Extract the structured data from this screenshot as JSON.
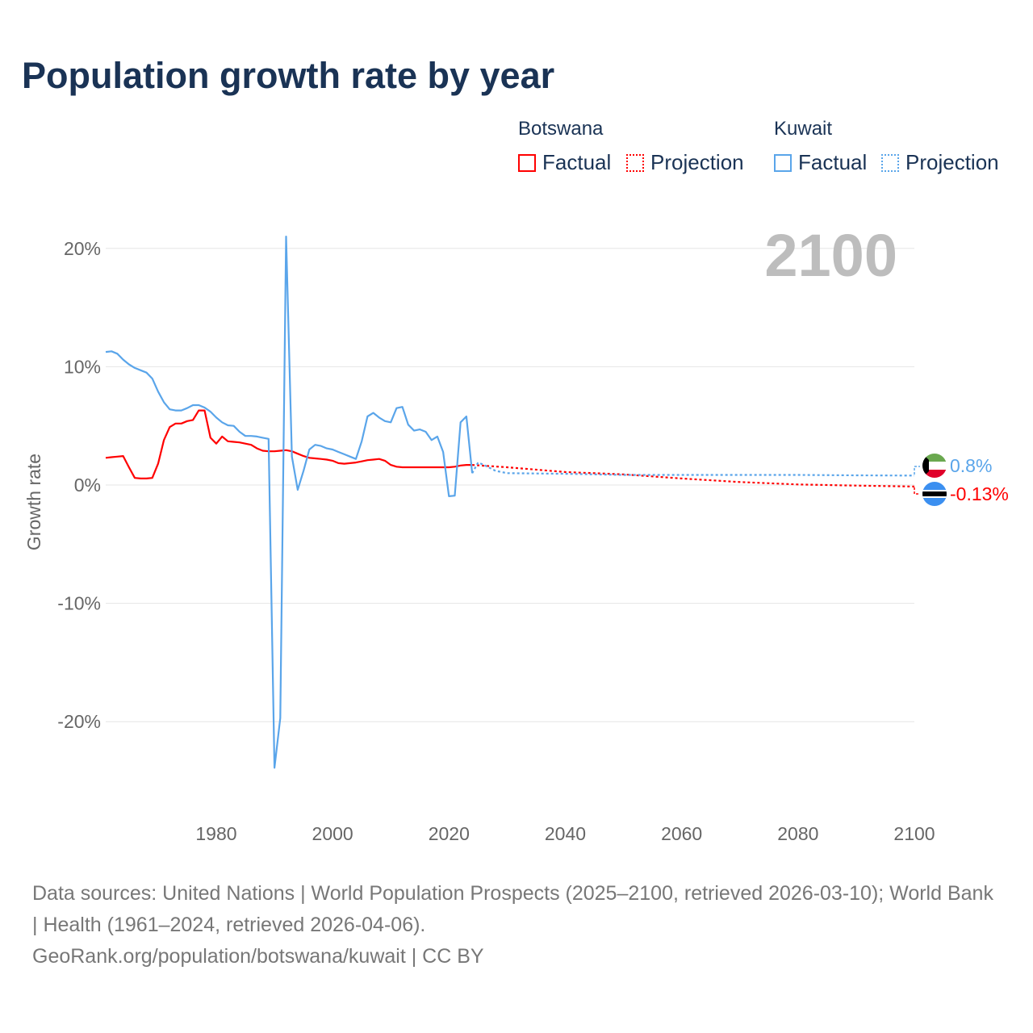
{
  "title": "Population growth rate by year",
  "legend": {
    "groups": [
      {
        "country": "Botswana",
        "factual": "Factual",
        "projection": "Projection",
        "color": "#ff0000"
      },
      {
        "country": "Kuwait",
        "factual": "Factual",
        "projection": "Projection",
        "color": "#5aa5ea"
      }
    ]
  },
  "year_display": "2100",
  "footer": {
    "sources": "Data sources: United Nations | World Population Prospects (2025–2100, retrieved 2026-03-10); World Bank | Health (1961–2024, retrieved 2026-04-06).",
    "site": "GeoRank.org/population/botswana/kuwait | CC BY"
  },
  "chart_data": {
    "type": "line",
    "title": "Population growth rate by year",
    "xlabel": "",
    "ylabel": "Growth rate",
    "xlim": [
      1961,
      2100
    ],
    "ylim": [
      -27,
      24
    ],
    "x_ticks": [
      1980,
      2000,
      2020,
      2040,
      2060,
      2080,
      2100
    ],
    "y_ticks": [
      20,
      10,
      0,
      -10,
      -20
    ],
    "y_tick_labels": [
      "20%",
      "10%",
      "0%",
      "-10%",
      "-20%"
    ],
    "grid": true,
    "end_labels": {
      "Kuwait": "0.8%",
      "Botswana": "-0.13%"
    },
    "series": [
      {
        "name": "Botswana",
        "kind": "factual",
        "color": "#ff0000",
        "x": [
          1961,
          1962,
          1963,
          1964,
          1965,
          1966,
          1967,
          1968,
          1969,
          1970,
          1971,
          1972,
          1973,
          1974,
          1975,
          1976,
          1977,
          1978,
          1979,
          1980,
          1981,
          1982,
          1983,
          1984,
          1985,
          1986,
          1987,
          1988,
          1989,
          1990,
          1991,
          1992,
          1993,
          1994,
          1995,
          1996,
          1997,
          1998,
          1999,
          2000,
          2001,
          2002,
          2003,
          2004,
          2005,
          2006,
          2007,
          2008,
          2009,
          2010,
          2011,
          2012,
          2013,
          2014,
          2015,
          2016,
          2017,
          2018,
          2019,
          2020,
          2021,
          2022,
          2023,
          2024
        ],
        "y": [
          2.3,
          2.35,
          2.4,
          2.45,
          1.5,
          0.6,
          0.55,
          0.55,
          0.6,
          1.8,
          3.8,
          4.9,
          5.2,
          5.2,
          5.4,
          5.5,
          6.3,
          6.3,
          4.0,
          3.5,
          4.1,
          3.7,
          3.65,
          3.6,
          3.5,
          3.4,
          3.1,
          2.9,
          2.85,
          2.85,
          2.9,
          2.95,
          2.85,
          2.65,
          2.45,
          2.3,
          2.25,
          2.2,
          2.15,
          2.05,
          1.85,
          1.8,
          1.85,
          1.9,
          2.0,
          2.1,
          2.15,
          2.2,
          2.05,
          1.7,
          1.55,
          1.5,
          1.5,
          1.5,
          1.5,
          1.5,
          1.5,
          1.5,
          1.5,
          1.5,
          1.55,
          1.65,
          1.7,
          1.7
        ]
      },
      {
        "name": "Botswana",
        "kind": "projection",
        "color": "#ff0000",
        "x": [
          2024,
          2030,
          2040,
          2050,
          2060,
          2070,
          2080,
          2090,
          2100
        ],
        "y": [
          1.7,
          1.5,
          1.1,
          0.9,
          0.55,
          0.25,
          0.05,
          -0.05,
          -0.13
        ]
      },
      {
        "name": "Kuwait",
        "kind": "factual",
        "color": "#5aa5ea",
        "x": [
          1961,
          1962,
          1963,
          1964,
          1965,
          1966,
          1967,
          1968,
          1969,
          1970,
          1971,
          1972,
          1973,
          1974,
          1975,
          1976,
          1977,
          1978,
          1979,
          1980,
          1981,
          1982,
          1983,
          1984,
          1985,
          1986,
          1987,
          1988,
          1989,
          1990,
          1991,
          1992,
          1993,
          1994,
          1995,
          1996,
          1997,
          1998,
          1999,
          2000,
          2001,
          2002,
          2003,
          2004,
          2005,
          2006,
          2007,
          2008,
          2009,
          2010,
          2011,
          2012,
          2013,
          2014,
          2015,
          2016,
          2017,
          2018,
          2019,
          2020,
          2021,
          2022,
          2023,
          2024
        ],
        "y": [
          11.25,
          11.3,
          11.1,
          10.6,
          10.2,
          9.9,
          9.7,
          9.5,
          9.0,
          7.9,
          7.0,
          6.4,
          6.3,
          6.3,
          6.5,
          6.75,
          6.75,
          6.55,
          6.2,
          5.7,
          5.3,
          5.05,
          5.0,
          4.5,
          4.15,
          4.15,
          4.1,
          4.0,
          3.9,
          -23.9,
          -19.7,
          21.0,
          2.4,
          -0.4,
          1.2,
          3.0,
          3.4,
          3.3,
          3.1,
          3.0,
          2.8,
          2.6,
          2.4,
          2.2,
          3.7,
          5.8,
          6.1,
          5.7,
          5.4,
          5.3,
          6.5,
          6.6,
          5.1,
          4.6,
          4.7,
          4.5,
          3.8,
          4.1,
          2.8,
          -0.95,
          -0.9,
          5.3,
          5.8,
          1.0
        ]
      },
      {
        "name": "Kuwait",
        "kind": "projection",
        "color": "#5aa5ea",
        "x": [
          2024,
          2025,
          2026,
          2028,
          2030,
          2040,
          2050,
          2060,
          2070,
          2080,
          2090,
          2100
        ],
        "y": [
          1.0,
          1.9,
          1.7,
          1.2,
          1.0,
          0.95,
          0.85,
          0.85,
          0.85,
          0.85,
          0.82,
          0.8
        ]
      }
    ]
  }
}
